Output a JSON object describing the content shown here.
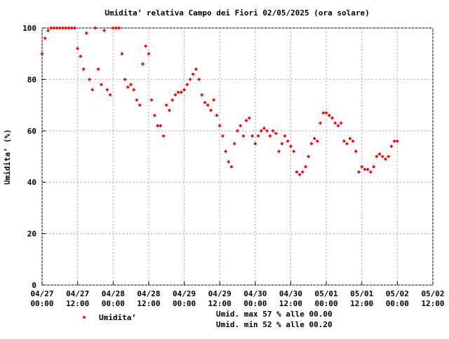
{
  "chart_data": {
    "type": "scatter",
    "title": "Umidita’ relativa Campo dei Fiori 02/05/2025 (ora solare)",
    "y_label": "Umidita’ (%)",
    "annotations": [
      "Umid. max 57 % alle 00.00",
      "Umid. min 52 % alle 00.20"
    ],
    "xlim": [
      0,
      132
    ],
    "ylim": [
      0,
      100
    ],
    "xticks": [
      {
        "value": 0,
        "label": [
          "04/27",
          "00:00"
        ]
      },
      {
        "value": 12,
        "label": [
          "04/27",
          "12:00"
        ]
      },
      {
        "value": 24,
        "label": [
          "04/28",
          "00:00"
        ]
      },
      {
        "value": 36,
        "label": [
          "04/28",
          "12:00"
        ]
      },
      {
        "value": 48,
        "label": [
          "04/29",
          "00:00"
        ]
      },
      {
        "value": 60,
        "label": [
          "04/29",
          "12:00"
        ]
      },
      {
        "value": 72,
        "label": [
          "04/30",
          "00:00"
        ]
      },
      {
        "value": 84,
        "label": [
          "04/30",
          "12:00"
        ]
      },
      {
        "value": 96,
        "label": [
          "05/01",
          "00:00"
        ]
      },
      {
        "value": 108,
        "label": [
          "05/01",
          "12:00"
        ]
      },
      {
        "value": 120,
        "label": [
          "05/02",
          "00:00"
        ]
      },
      {
        "value": 132,
        "label": [
          "05/02",
          "12:00"
        ]
      }
    ],
    "yticks": [
      0,
      20,
      40,
      60,
      80,
      100
    ],
    "grid": true,
    "x": [
      0,
      1,
      2,
      3,
      4,
      5,
      6,
      7,
      8,
      9,
      10,
      11,
      12,
      13,
      14,
      15,
      16,
      17,
      18,
      19,
      20,
      21,
      22,
      23,
      24,
      25,
      26,
      27,
      28,
      29,
      30,
      31,
      32,
      33,
      34,
      35,
      36,
      37,
      38,
      39,
      40,
      41,
      42,
      43,
      44,
      45,
      46,
      47,
      48,
      49,
      50,
      51,
      52,
      53,
      54,
      55,
      56,
      57,
      58,
      59,
      60,
      61,
      62,
      63,
      64,
      65,
      66,
      67,
      68,
      69,
      70,
      71,
      72,
      73,
      74,
      75,
      76,
      77,
      78,
      79,
      80,
      81,
      82,
      83,
      84,
      85,
      86,
      87,
      88,
      89,
      90,
      91,
      92,
      93,
      94,
      95,
      96,
      97,
      98,
      99,
      100,
      101,
      102,
      103,
      104,
      105,
      106,
      107,
      108,
      109,
      110,
      111,
      112,
      113,
      114,
      115,
      116,
      117,
      118,
      119,
      120
    ],
    "series": [
      {
        "name": "Umidita’",
        "color": "#ff0000",
        "values": [
          90,
          96,
          99,
          100,
          100,
          100,
          100,
          100,
          100,
          100,
          100,
          100,
          92,
          89,
          84,
          98,
          80,
          76,
          100,
          84,
          78,
          99,
          76,
          74,
          100,
          100,
          100,
          90,
          80,
          77,
          78,
          76,
          72,
          70,
          86,
          93,
          90,
          72,
          66,
          62,
          62,
          58,
          70,
          68,
          72,
          74,
          75,
          75,
          76,
          78,
          80,
          82,
          84,
          80,
          74,
          71,
          70,
          68,
          72,
          66,
          62,
          58,
          52,
          48,
          46,
          55,
          60,
          62,
          58,
          64,
          65,
          58,
          55,
          58,
          60,
          61,
          60,
          58,
          60,
          59,
          52,
          55,
          58,
          56,
          54,
          52,
          44,
          43,
          44,
          46,
          50,
          55,
          57,
          56,
          63,
          67,
          67,
          66,
          65,
          63,
          62,
          63,
          56,
          55,
          57,
          56,
          52,
          44,
          46,
          45,
          45,
          44,
          46,
          50,
          51,
          50,
          49,
          50,
          54,
          56,
          56
        ]
      }
    ]
  }
}
